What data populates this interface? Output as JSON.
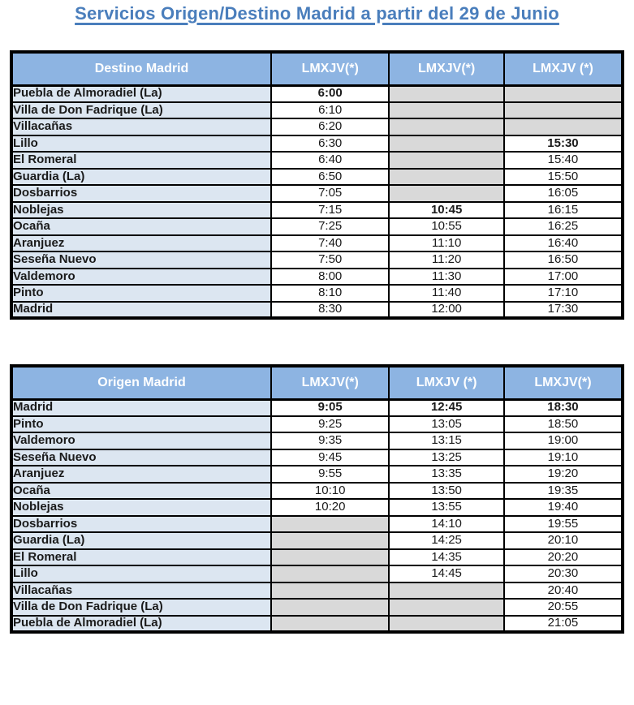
{
  "title": "Servicios Origen/Destino Madrid a partir del 29 de Junio",
  "colors": {
    "title_blue": "#4a7ebc",
    "header_bg": "#8db4e2",
    "station_bg": "#dce6f1",
    "empty_bg": "#d9d9d9",
    "border": "#000000",
    "header_text": "#ffffff"
  },
  "tables": [
    {
      "id": "destino-madrid",
      "columns": [
        "Destino Madrid",
        "LMXJV(*)",
        "LMXJV(*)",
        "LMXJV (*)"
      ],
      "rows": [
        {
          "station": "Puebla de Almoradiel (La)",
          "times": [
            "6:00",
            "",
            ""
          ],
          "bold": [
            true,
            false,
            false
          ]
        },
        {
          "station": "Villa de Don Fadrique (La)",
          "times": [
            "6:10",
            "",
            ""
          ],
          "bold": [
            false,
            false,
            false
          ]
        },
        {
          "station": "Villacañas",
          "times": [
            "6:20",
            "",
            ""
          ],
          "bold": [
            false,
            false,
            false
          ]
        },
        {
          "station": "Lillo",
          "times": [
            "6:30",
            "",
            "15:30"
          ],
          "bold": [
            false,
            false,
            true
          ]
        },
        {
          "station": "El Romeral",
          "times": [
            "6:40",
            "",
            "15:40"
          ],
          "bold": [
            false,
            false,
            false
          ]
        },
        {
          "station": "Guardia (La)",
          "times": [
            "6:50",
            "",
            "15:50"
          ],
          "bold": [
            false,
            false,
            false
          ]
        },
        {
          "station": "Dosbarrios",
          "times": [
            "7:05",
            "",
            "16:05"
          ],
          "bold": [
            false,
            false,
            false
          ]
        },
        {
          "station": "Noblejas",
          "times": [
            "7:15",
            "10:45",
            "16:15"
          ],
          "bold": [
            false,
            true,
            false
          ]
        },
        {
          "station": "Ocaña",
          "times": [
            "7:25",
            "10:55",
            "16:25"
          ],
          "bold": [
            false,
            false,
            false
          ]
        },
        {
          "station": "Aranjuez",
          "times": [
            "7:40",
            "11:10",
            "16:40"
          ],
          "bold": [
            false,
            false,
            false
          ]
        },
        {
          "station": "Seseña Nuevo",
          "times": [
            "7:50",
            "11:20",
            "16:50"
          ],
          "bold": [
            false,
            false,
            false
          ]
        },
        {
          "station": "Valdemoro",
          "times": [
            "8:00",
            "11:30",
            "17:00"
          ],
          "bold": [
            false,
            false,
            false
          ]
        },
        {
          "station": "Pinto",
          "times": [
            "8:10",
            "11:40",
            "17:10"
          ],
          "bold": [
            false,
            false,
            false
          ]
        },
        {
          "station": "Madrid",
          "times": [
            "8:30",
            "12:00",
            "17:30"
          ],
          "bold": [
            false,
            false,
            false
          ]
        }
      ]
    },
    {
      "id": "origen-madrid",
      "columns": [
        "Origen Madrid",
        "LMXJV(*)",
        "LMXJV (*)",
        "LMXJV(*)"
      ],
      "rows": [
        {
          "station": "Madrid",
          "times": [
            "9:05",
            "12:45",
            "18:30"
          ],
          "bold": [
            true,
            true,
            true
          ]
        },
        {
          "station": "Pinto",
          "times": [
            "9:25",
            "13:05",
            "18:50"
          ],
          "bold": [
            false,
            false,
            false
          ]
        },
        {
          "station": "Valdemoro",
          "times": [
            "9:35",
            "13:15",
            "19:00"
          ],
          "bold": [
            false,
            false,
            false
          ]
        },
        {
          "station": "Seseña Nuevo",
          "times": [
            "9:45",
            "13:25",
            "19:10"
          ],
          "bold": [
            false,
            false,
            false
          ]
        },
        {
          "station": "Aranjuez",
          "times": [
            "9:55",
            "13:35",
            "19:20"
          ],
          "bold": [
            false,
            false,
            false
          ]
        },
        {
          "station": "Ocaña",
          "times": [
            "10:10",
            "13:50",
            "19:35"
          ],
          "bold": [
            false,
            false,
            false
          ]
        },
        {
          "station": "Noblejas",
          "times": [
            "10:20",
            "13:55",
            "19:40"
          ],
          "bold": [
            false,
            false,
            false
          ]
        },
        {
          "station": "Dosbarrios",
          "times": [
            "",
            "14:10",
            "19:55"
          ],
          "bold": [
            false,
            false,
            false
          ]
        },
        {
          "station": "Guardia (La)",
          "times": [
            "",
            "14:25",
            "20:10"
          ],
          "bold": [
            false,
            false,
            false
          ]
        },
        {
          "station": "El Romeral",
          "times": [
            "",
            "14:35",
            "20:20"
          ],
          "bold": [
            false,
            false,
            false
          ]
        },
        {
          "station": "Lillo",
          "times": [
            "",
            "14:45",
            "20:30"
          ],
          "bold": [
            false,
            false,
            false
          ]
        },
        {
          "station": "Villacañas",
          "times": [
            "",
            "",
            "20:40"
          ],
          "bold": [
            false,
            false,
            false
          ]
        },
        {
          "station": "Villa de Don Fadrique (La)",
          "times": [
            "",
            "",
            "20:55"
          ],
          "bold": [
            false,
            false,
            false
          ]
        },
        {
          "station": "Puebla de Almoradiel (La)",
          "times": [
            "",
            "",
            "21:05"
          ],
          "bold": [
            false,
            false,
            false
          ]
        }
      ]
    }
  ]
}
